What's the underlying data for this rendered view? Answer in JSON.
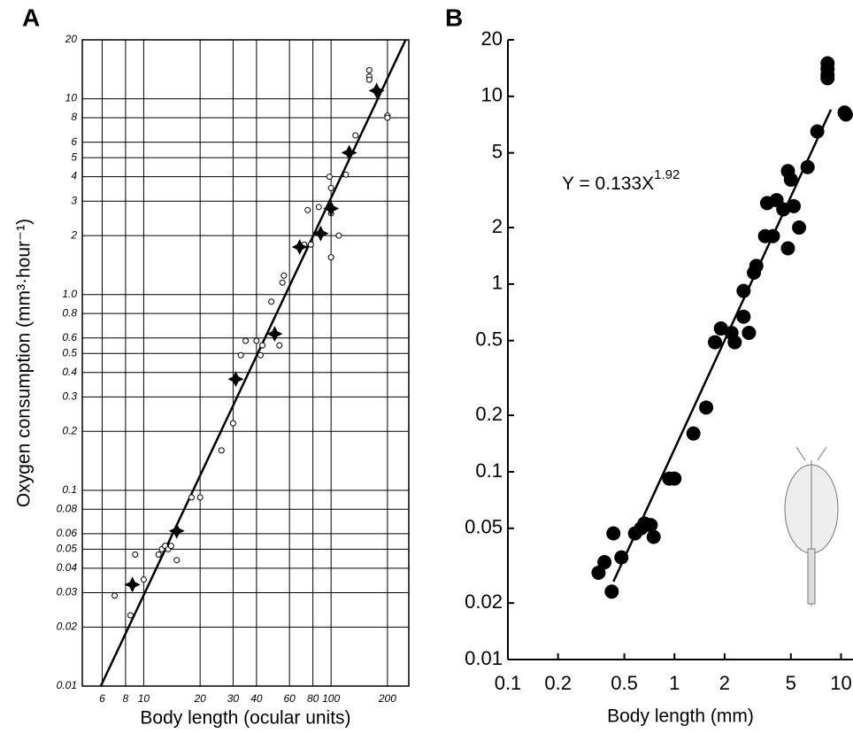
{
  "chart_data": [
    {
      "type": "scatter",
      "panel_label": "A",
      "x_label": "Body length (ocular units)",
      "y_label": "Oxygen consumption (mm³·hour⁻¹)",
      "log_x": true,
      "log_y": true,
      "grid": true,
      "frame": true,
      "xlim": [
        4.7,
        260
      ],
      "ylim": [
        0.01,
        20
      ],
      "xticks": [
        6,
        8,
        10,
        20,
        30,
        40,
        60,
        80,
        100,
        200
      ],
      "yticks": [
        0.01,
        0.02,
        0.03,
        0.04,
        0.05,
        0.06,
        0.08,
        0.1,
        0.2,
        0.3,
        0.4,
        0.5,
        0.6,
        0.8,
        {
          "value": 1,
          "label": "1.0"
        },
        2,
        3,
        4,
        5,
        6,
        8,
        10,
        20
      ],
      "series": [
        {
          "marker": "open-circle",
          "color": "#000000",
          "x": [
            7,
            8.5,
            9,
            10,
            12,
            12.5,
            13,
            13.5,
            14,
            15,
            18,
            20,
            26,
            30,
            33,
            35,
            40,
            42,
            43,
            48,
            53,
            55,
            56,
            72,
            75,
            78,
            86,
            98,
            100,
            100,
            100,
            110,
            120,
            135,
            160,
            160,
            160,
            200,
            200
          ],
          "y": [
            0.029,
            0.023,
            0.047,
            0.035,
            0.047,
            0.05,
            0.052,
            0.05,
            0.052,
            0.044,
            0.092,
            0.092,
            0.16,
            0.22,
            0.49,
            0.58,
            0.58,
            0.49,
            0.55,
            0.92,
            0.55,
            1.15,
            1.25,
            1.8,
            2.7,
            1.8,
            2.8,
            4.0,
            1.55,
            3.5,
            2.6,
            2.0,
            4.1,
            6.5,
            14,
            13,
            12.5,
            8.2,
            8.0
          ]
        },
        {
          "marker": "filled-star",
          "color": "#000000",
          "x": [
            8.7,
            15,
            31,
            50,
            68,
            88,
            100,
            125,
            175
          ],
          "y": [
            0.033,
            0.062,
            0.37,
            0.63,
            1.75,
            2.05,
            2.75,
            5.3,
            11
          ]
        }
      ],
      "fit_line": {
        "x": [
          5.9,
          250
        ],
        "y": [
          0.01,
          20
        ]
      }
    },
    {
      "type": "scatter",
      "panel_label": "B",
      "x_label": "Body length (mm)",
      "equation": "Y = 0.133X",
      "equation_exponent": "1.92",
      "log_x": true,
      "log_y": true,
      "grid": false,
      "frame": false,
      "xlim": [
        0.1,
        11.8
      ],
      "ylim": [
        0.01,
        20
      ],
      "xticks": [
        0.1,
        0.2,
        0.5,
        1,
        2,
        5,
        10
      ],
      "yticks": [
        0.01,
        0.02,
        0.05,
        0.1,
        0.2,
        0.5,
        1,
        2,
        5,
        10,
        20
      ],
      "series": [
        {
          "marker": "filled-circle",
          "color": "#000000",
          "x": [
            0.35,
            0.38,
            0.42,
            0.43,
            0.48,
            0.58,
            0.63,
            0.66,
            0.72,
            0.75,
            0.93,
            1.0,
            1.3,
            1.55,
            1.75,
            1.9,
            2.2,
            2.3,
            2.6,
            2.6,
            2.8,
            3.0,
            3.1,
            3.5,
            3.6,
            3.9,
            4.1,
            4.5,
            4.8,
            4.8,
            5.0,
            5.2,
            5.6,
            6.3,
            7.2,
            8.3,
            8.3,
            8.3,
            8.3,
            10.5,
            10.7
          ],
          "y": [
            0.029,
            0.033,
            0.023,
            0.047,
            0.035,
            0.047,
            0.05,
            0.053,
            0.052,
            0.045,
            0.092,
            0.092,
            0.16,
            0.22,
            0.49,
            0.58,
            0.55,
            0.49,
            0.67,
            0.92,
            0.55,
            1.15,
            1.25,
            1.8,
            2.7,
            1.8,
            2.8,
            2.5,
            1.55,
            4.0,
            3.6,
            2.6,
            2.0,
            4.2,
            6.5,
            14,
            15,
            13,
            12.5,
            8.2,
            8.0
          ]
        }
      ],
      "fit_line": {
        "x": [
          0.43,
          8.7
        ],
        "y": [
          0.026,
          8.5
        ]
      }
    }
  ]
}
